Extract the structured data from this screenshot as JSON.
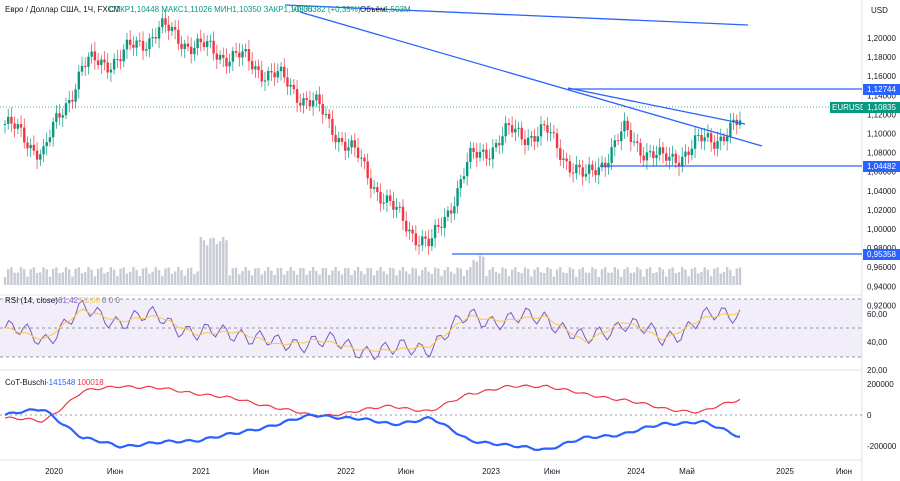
{
  "header": {
    "title": "Евро / Доллар США, 1Ч, FXCM",
    "ohlc": "ОТКР1,10448 МАКС1,11026 МИН1,10350 ЗАКР1,10835",
    "change": "+0,00382 (+0,35%)",
    "volume_label": "Объём",
    "volume_value": "1,503M"
  },
  "price_axis": {
    "currency": "USD",
    "ticks": [
      "1,20000",
      "1,18000",
      "1,16000",
      "1,14000",
      "1,12000",
      "1,10000",
      "1,08000",
      "1,06000",
      "1,04000",
      "1,02000",
      "1,00000",
      "0,98000",
      "0,96000",
      "0,94000",
      "0,92000"
    ]
  },
  "price_badges": {
    "ticker": "EURUSD",
    "last": "1,10835",
    "levels": [
      "1,12744",
      "1,04482",
      "0,95358"
    ],
    "colors": {
      "level": "#2962ff",
      "last": "#089981"
    }
  },
  "rsi": {
    "label": "RSI (14, close)",
    "value_1": "61,42",
    "value_2": "58,08",
    "extra": "0  0  0",
    "ticks": [
      "60,00",
      "40,00",
      "20,00"
    ]
  },
  "cot": {
    "label": "CoT-Buschi",
    "value_blue": "-141548",
    "value_red": "100018",
    "ticks": [
      "200000",
      "0",
      "-200000"
    ]
  },
  "time_axis": {
    "ticks": [
      "2020",
      "Июн",
      "2021",
      "Июн",
      "2022",
      "Июн",
      "2023",
      "Июн",
      "2024",
      "Май",
      "2025",
      "Июн"
    ]
  },
  "chart_data": {
    "type": "line",
    "x": [
      "2020-01",
      "2020-04",
      "2020-07",
      "2020-10",
      "2021-01",
      "2021-04",
      "2021-07",
      "2021-10",
      "2022-01",
      "2022-04",
      "2022-07",
      "2022-10",
      "2023-01",
      "2023-04",
      "2023-07",
      "2023-10",
      "2024-01",
      "2024-04",
      "2024-07",
      "2024-09"
    ],
    "series": [
      {
        "name": "EURUSD",
        "values": [
          1.11,
          1.08,
          1.17,
          1.18,
          1.21,
          1.19,
          1.18,
          1.16,
          1.13,
          1.08,
          1.02,
          0.98,
          1.07,
          1.1,
          1.1,
          1.05,
          1.1,
          1.07,
          1.09,
          1.108
        ]
      }
    ],
    "rsi": [
      50,
      42,
      62,
      55,
      58,
      45,
      48,
      38,
      42,
      36,
      34,
      38,
      58,
      55,
      58,
      40,
      55,
      42,
      56,
      61
    ],
    "cot_blue": [
      0,
      40000,
      -150000,
      -200000,
      -180000,
      -160000,
      -120000,
      -60000,
      0,
      -20000,
      -60000,
      -20000,
      -160000,
      -200000,
      -220000,
      -150000,
      -120000,
      -60000,
      -40000,
      -141548
    ],
    "cot_red": [
      -20000,
      -40000,
      150000,
      190000,
      170000,
      140000,
      100000,
      50000,
      -10000,
      20000,
      60000,
      20000,
      140000,
      180000,
      190000,
      130000,
      100000,
      40000,
      20000,
      100018
    ],
    "ylim": [
      0.92,
      1.21
    ],
    "levels": [
      1.12744,
      1.04482,
      0.95358
    ]
  }
}
